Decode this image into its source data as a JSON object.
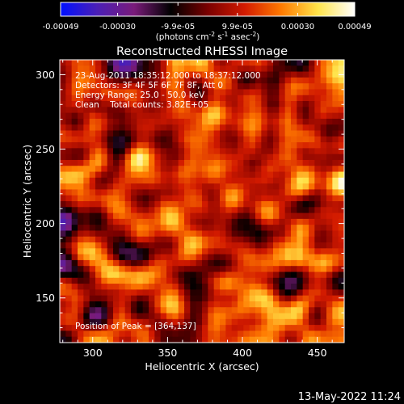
{
  "colorbar": {
    "gradient_stops": [
      "#0010ff",
      "#4b1fb6",
      "#7a1b7a",
      "#000000",
      "#7a0000",
      "#d21a00",
      "#ff7a00",
      "#ffe44a",
      "#ffffff"
    ],
    "tick_labels": [
      "-0.00049",
      "-0.00030",
      "-9.9e-05",
      "9.9e-05",
      "0.00030",
      "0.00049"
    ],
    "tick_values": [
      -0.00049,
      -0.0003,
      -9.9e-05,
      9.9e-05,
      0.0003,
      0.00049
    ],
    "unit_main": "(photons cm",
    "unit_exp1": "-2",
    "unit_mid": " s",
    "unit_exp2": "-1",
    "unit_mid2": " asec",
    "unit_exp3": "-2",
    "unit_end": ")"
  },
  "annotations": {
    "time_range": "23-Aug-2011 18:35:12.000 to 18:37:12.000",
    "detectors": "Detectors: 3F 4F 5F 6F 7F 8F, Att 0",
    "energy": "Energy Range: 25.0 - 50.0 keV",
    "algorithm": "Clean    Total counts: 3.82E+05",
    "peak": "Position of Peak = [364,137]"
  },
  "footer": {
    "date": "13-May-2022 11:24"
  },
  "chart_data": {
    "type": "heatmap",
    "title": "Reconstructed RHESSI Image",
    "xlabel": "Heliocentric X (arcsec)",
    "ylabel": "Heliocentric Y (arcsec)",
    "xlim": [
      278,
      468
    ],
    "ylim": [
      120,
      310
    ],
    "xticks": [
      300,
      350,
      400,
      450
    ],
    "yticks": [
      150,
      200,
      250,
      300
    ],
    "xtick_labels": [
      "300",
      "350",
      "400",
      "450"
    ],
    "ytick_labels": [
      "150",
      "200",
      "250",
      "300"
    ],
    "value_range": [
      -0.00049,
      0.00049
    ],
    "colormap": "blue-purple-black-red-orange-yellow-white",
    "peak_position": [
      364,
      137
    ],
    "grid": false
  }
}
